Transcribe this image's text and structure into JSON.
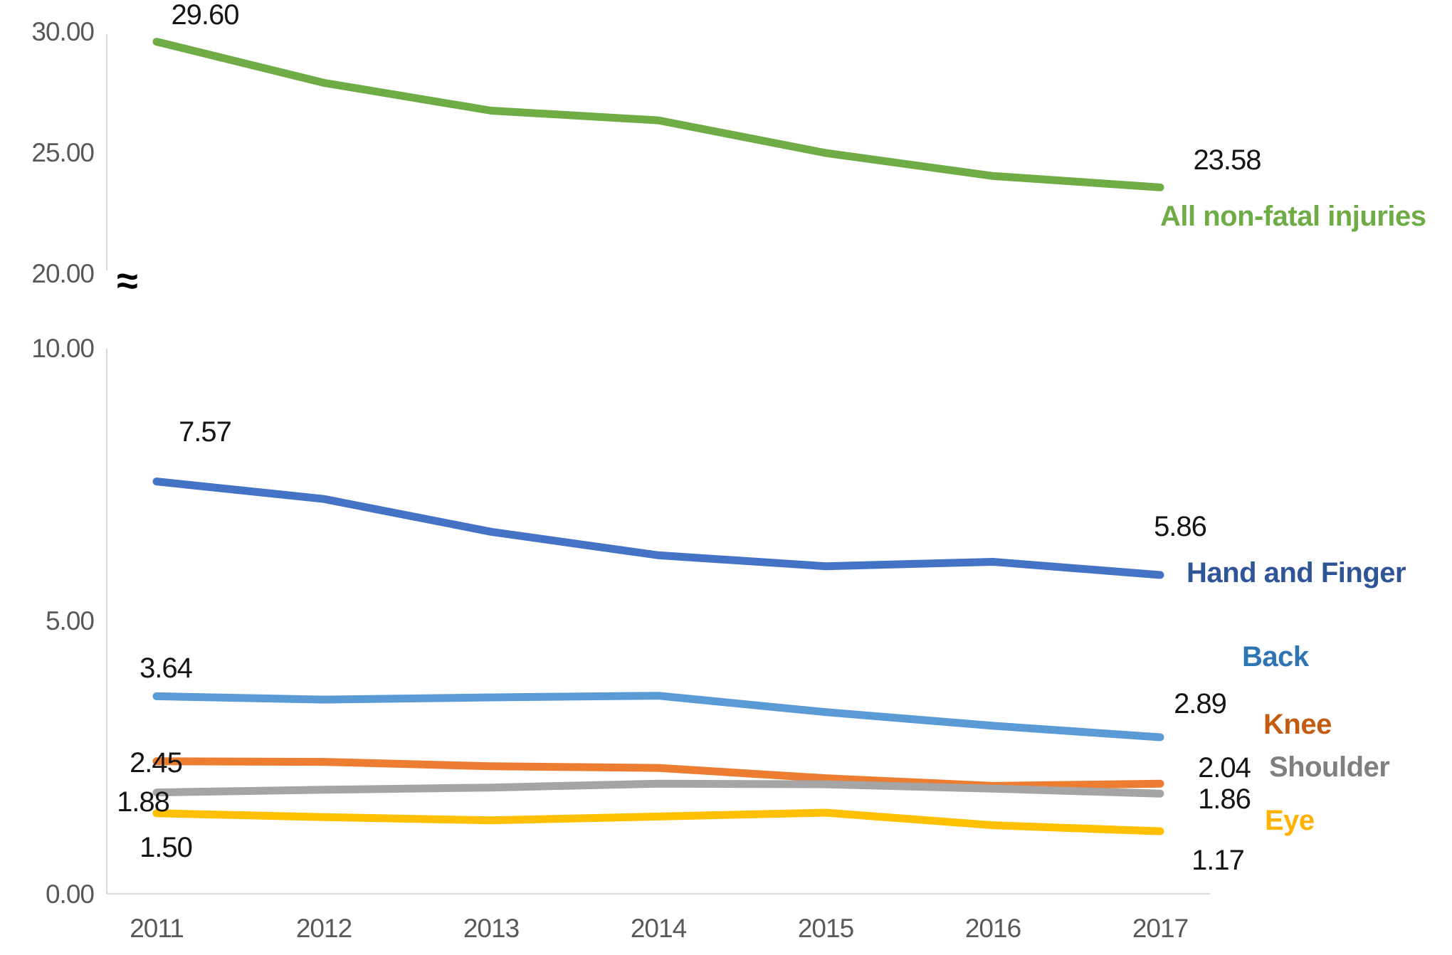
{
  "chart_data": {
    "type": "line",
    "title": "",
    "xlabel": "",
    "ylabel": "",
    "grid": false,
    "legend_position": "end-of-line inline labels",
    "x": [
      "2011",
      "2012",
      "2013",
      "2014",
      "2015",
      "2016",
      "2017"
    ],
    "y_axis": {
      "broken": true,
      "break_symbol": "≈",
      "upper_panel_range": [
        20,
        30
      ],
      "lower_panel_range": [
        0,
        10
      ],
      "upper_ticks": [
        "30.00",
        "25.00",
        "20.00"
      ],
      "lower_ticks": [
        "10.00",
        "5.00",
        "0.00"
      ]
    },
    "series": [
      {
        "name": "All non-fatal injuries",
        "panel": "upper",
        "color": "#6FAC46",
        "label_color": "#6FAC46",
        "values": [
          29.6,
          27.9,
          26.75,
          26.35,
          25.0,
          24.05,
          23.58
        ],
        "first_label": "29.60",
        "last_label": "23.58"
      },
      {
        "name": "Hand and Finger",
        "panel": "lower",
        "color": "#4472C4",
        "label_color": "#2F5597",
        "values": [
          7.57,
          7.25,
          6.65,
          6.22,
          6.02,
          6.1,
          5.86
        ],
        "first_label": "7.57",
        "last_label": "5.86"
      },
      {
        "name": "Back",
        "panel": "lower",
        "color": "#5B9BD5",
        "label_color": "#2E75B6",
        "values": [
          3.64,
          3.58,
          3.62,
          3.65,
          3.35,
          3.1,
          2.89
        ],
        "first_label": "3.64",
        "last_label": "2.89"
      },
      {
        "name": "Knee",
        "panel": "lower",
        "color": "#ED7D31",
        "label_color": "#C55A11",
        "values": [
          2.45,
          2.44,
          2.36,
          2.33,
          2.14,
          2.0,
          2.04
        ],
        "first_label": "2.45",
        "last_label": "2.04"
      },
      {
        "name": "Shoulder",
        "panel": "lower",
        "color": "#A5A5A5",
        "label_color": "#7F7F7F",
        "values": [
          1.88,
          1.93,
          1.97,
          2.04,
          2.03,
          1.95,
          1.86
        ],
        "first_label": "1.88",
        "last_label": "1.86"
      },
      {
        "name": "Eye",
        "panel": "lower",
        "color": "#FFC000",
        "label_color": "#FFB300",
        "values": [
          1.5,
          1.43,
          1.37,
          1.44,
          1.51,
          1.28,
          1.17
        ],
        "first_label": "1.50",
        "last_label": "1.17"
      }
    ]
  }
}
